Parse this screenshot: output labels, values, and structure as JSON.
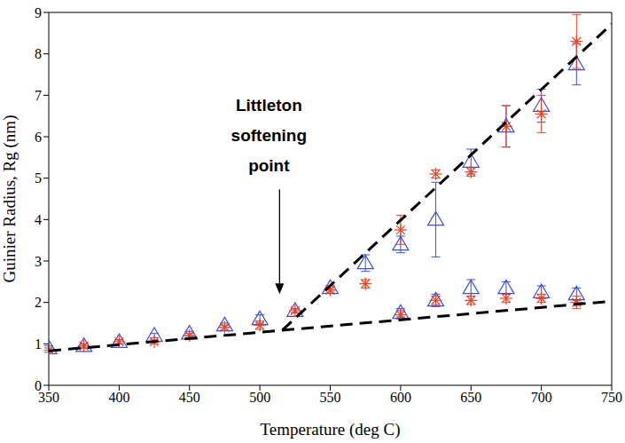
{
  "chart_data": {
    "type": "scatter",
    "x_label": "Temperature (deg C)",
    "y_label": "Guinier Radius, Rg (nm)",
    "xlim": [
      350,
      750
    ],
    "xticks": [
      350,
      400,
      450,
      500,
      550,
      600,
      650,
      700,
      750
    ],
    "ylim": [
      0,
      9
    ],
    "yticks": [
      0,
      1,
      2,
      3,
      4,
      5,
      6,
      7,
      8,
      9
    ],
    "grid": false,
    "series": [
      {
        "type": "scatter",
        "color": "#3b4fd8",
        "marker": "triangle",
        "x": [
          350,
          375,
          400,
          425,
          450,
          475,
          500,
          525,
          550,
          575,
          600,
          600,
          625,
          625,
          650,
          650,
          675,
          675,
          700,
          700,
          725,
          725
        ],
        "values": [
          0.9,
          0.95,
          1.05,
          1.2,
          1.25,
          1.45,
          1.6,
          1.8,
          2.35,
          2.95,
          3.4,
          1.75,
          4.0,
          2.05,
          5.4,
          2.35,
          6.25,
          2.35,
          6.75,
          2.25,
          7.75,
          2.2
        ],
        "error": [
          0.05,
          0.05,
          0.05,
          0.05,
          0.05,
          0.05,
          0.1,
          0.05,
          0.05,
          0.2,
          0.2,
          0.1,
          0.9,
          0.15,
          0.3,
          0.2,
          0.5,
          0.15,
          0.4,
          0.15,
          0.5,
          0.15
        ]
      },
      {
        "type": "scatter",
        "color": "#f0401e",
        "marker": "asterisk",
        "x": [
          350,
          375,
          400,
          425,
          450,
          475,
          500,
          525,
          550,
          575,
          600,
          600,
          625,
          625,
          650,
          650,
          675,
          675,
          700,
          700,
          725,
          725
        ],
        "values": [
          0.85,
          0.95,
          1.05,
          1.05,
          1.2,
          1.4,
          1.45,
          1.8,
          2.3,
          2.45,
          3.75,
          1.7,
          5.1,
          2.05,
          5.15,
          2.05,
          6.25,
          2.1,
          6.55,
          2.1,
          8.3,
          2.0
        ],
        "error": [
          0.05,
          0.05,
          0.05,
          0.05,
          0.05,
          0.05,
          0.1,
          0.05,
          0.05,
          0.1,
          0.35,
          0.1,
          0.1,
          0.1,
          0.1,
          0.1,
          0.5,
          0.1,
          0.45,
          0.1,
          0.65,
          0.15
        ]
      },
      {
        "type": "line",
        "color": "#000000",
        "line_style": "dashed",
        "x": [
          350,
          750
        ],
        "values": [
          0.83,
          2.03
        ]
      },
      {
        "type": "line",
        "color": "#000000",
        "line_style": "dashed",
        "x": [
          516,
          750
        ],
        "values": [
          1.33,
          8.72
        ]
      }
    ],
    "annotations": [
      {
        "text": "Littleton softening point",
        "x": 514,
        "y": 2.2
      }
    ]
  }
}
